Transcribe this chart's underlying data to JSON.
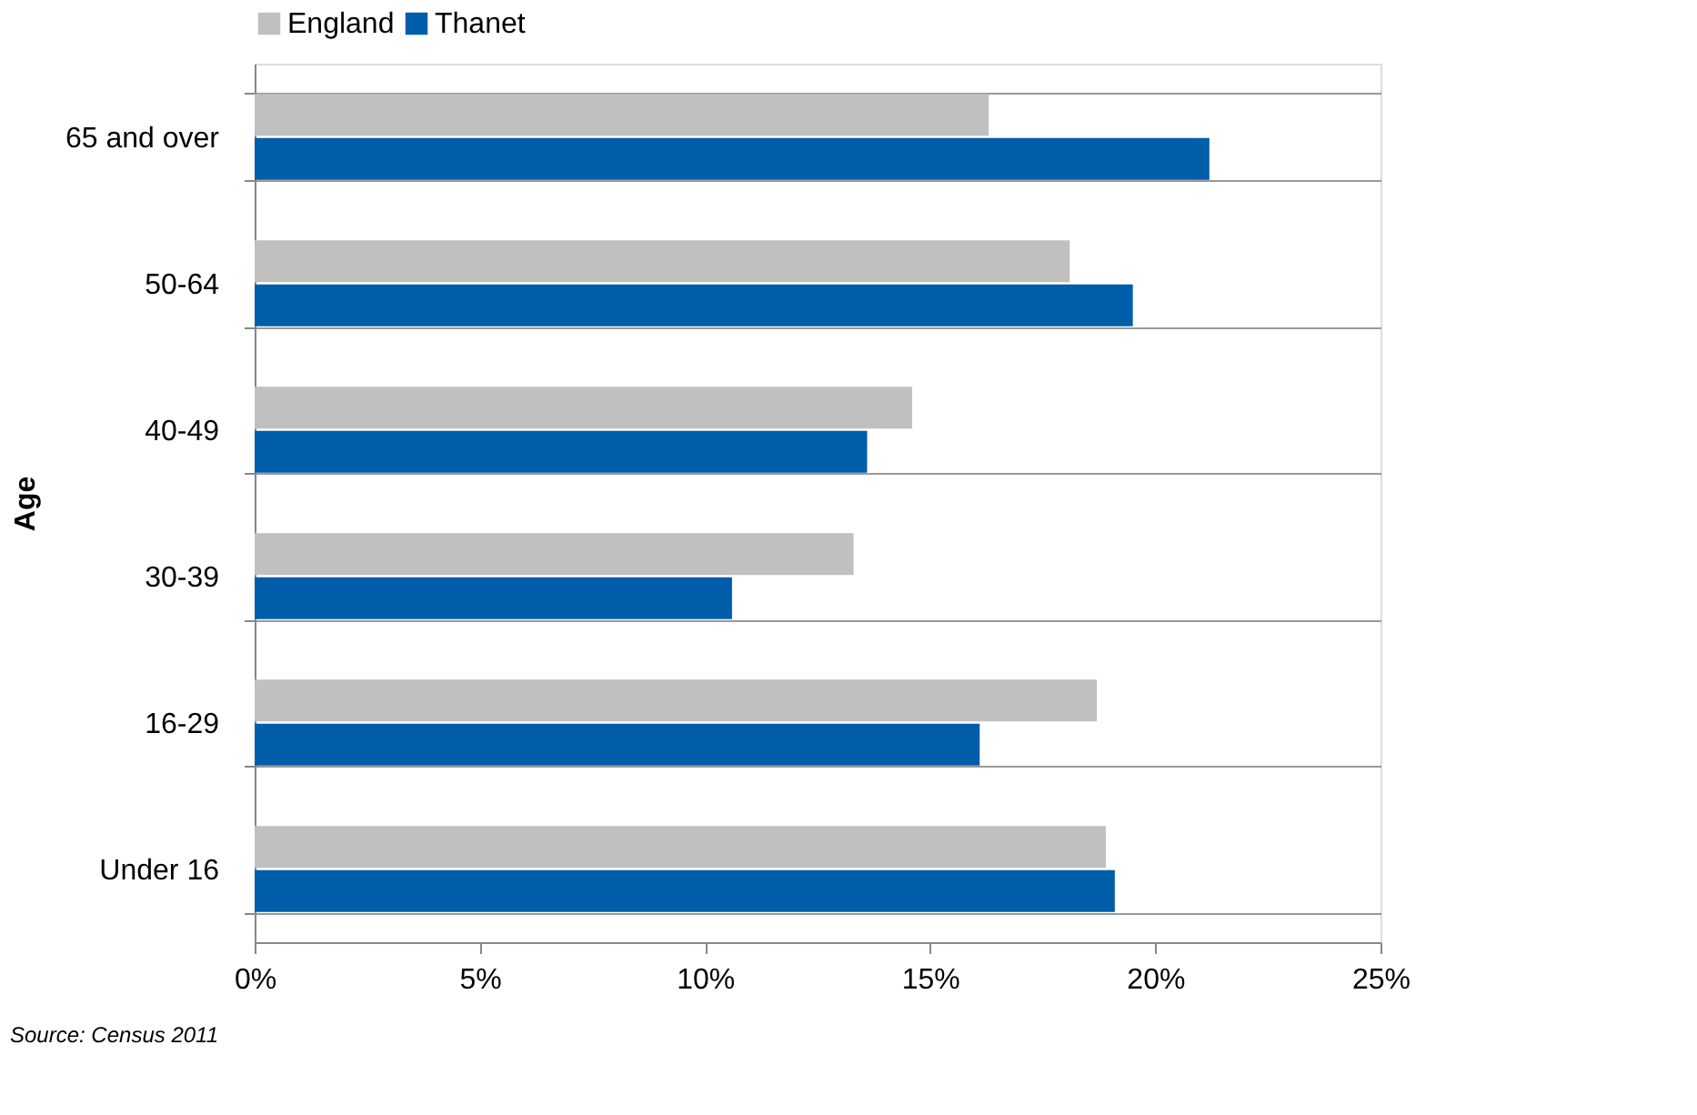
{
  "chart_data": {
    "type": "bar",
    "orientation": "horizontal",
    "ylabel": "Age",
    "categories": [
      "65 and over",
      "50-64",
      "40-49",
      "30-39",
      "16-29",
      "Under 16"
    ],
    "series": [
      {
        "name": "England",
        "color": "#c0c0c0",
        "values": [
          16.3,
          18.1,
          14.6,
          13.3,
          18.7,
          18.9
        ]
      },
      {
        "name": "Thanet",
        "color": "#005daa",
        "values": [
          21.2,
          19.5,
          13.6,
          10.6,
          16.1,
          19.1
        ]
      }
    ],
    "xlim": [
      0,
      25
    ],
    "xticks": [
      {
        "value": 0,
        "label": "0%"
      },
      {
        "value": 5,
        "label": "5%"
      },
      {
        "value": 10,
        "label": "10%"
      },
      {
        "value": 15,
        "label": "15%"
      },
      {
        "value": 20,
        "label": "20%"
      },
      {
        "value": 25,
        "label": "25%"
      }
    ],
    "grid": "y",
    "legend": "top",
    "annotations": [
      "Source: Census 2011"
    ]
  }
}
